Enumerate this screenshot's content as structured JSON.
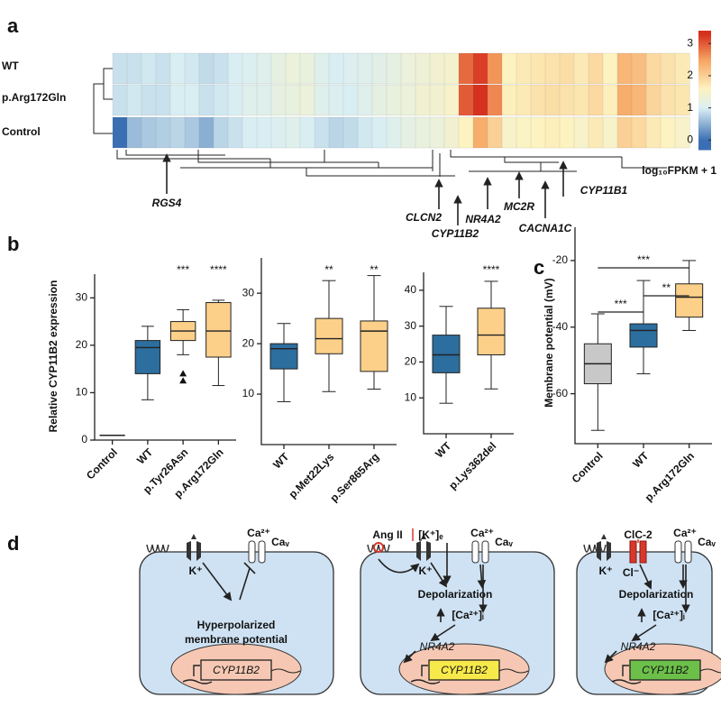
{
  "panels": {
    "a": {
      "label": "a",
      "rows": [
        "WT",
        "p.Arg172Gln",
        "Control"
      ],
      "heatmap": [
        [
          0.9,
          0.9,
          0.95,
          0.9,
          1.0,
          0.95,
          0.85,
          0.9,
          1.0,
          1.05,
          1.1,
          1.2,
          1.3,
          1.25,
          1.1,
          1.0,
          1.05,
          1.1,
          1.15,
          1.2,
          1.3,
          1.35,
          1.4,
          1.45,
          2.9,
          3.2,
          2.6,
          1.6,
          1.7,
          1.75,
          1.8,
          1.85,
          1.7,
          1.9,
          1.6,
          2.3,
          2.2,
          1.9,
          1.8,
          1.7
        ],
        [
          0.9,
          0.95,
          0.9,
          0.9,
          1.0,
          1.0,
          0.9,
          0.95,
          1.0,
          1.1,
          1.1,
          1.2,
          1.25,
          1.3,
          1.1,
          1.05,
          1.0,
          1.1,
          1.2,
          1.25,
          1.3,
          1.4,
          1.4,
          1.5,
          3.0,
          3.3,
          2.7,
          1.65,
          1.7,
          1.8,
          1.85,
          1.8,
          1.75,
          1.9,
          1.65,
          2.4,
          2.3,
          1.95,
          1.8,
          1.75
        ],
        [
          0.0,
          0.6,
          0.7,
          0.75,
          0.8,
          0.7,
          0.5,
          0.8,
          0.9,
          1.0,
          1.0,
          1.05,
          1.1,
          1.0,
          0.9,
          0.8,
          0.85,
          0.95,
          1.0,
          1.1,
          1.2,
          1.25,
          1.3,
          1.4,
          1.6,
          2.4,
          2.0,
          1.5,
          1.55,
          1.6,
          1.65,
          1.6,
          1.5,
          1.7,
          1.5,
          2.0,
          1.9,
          1.7,
          1.6,
          1.5
        ]
      ],
      "colorscale": [
        [
          0,
          "#3b6fb3"
        ],
        [
          1,
          "#d9eef3"
        ],
        [
          1.6,
          "#fdf3c0"
        ],
        [
          2.5,
          "#f6a462"
        ],
        [
          3.3,
          "#d6301e"
        ]
      ],
      "clim": [
        -0.3,
        3.4
      ],
      "cticks": [
        0,
        1,
        2,
        3
      ],
      "colorbar_label": "log₁₀FPKM + 1",
      "genes": [
        "RGS4",
        "CLCN2",
        "CYP11B2",
        "NR4A2",
        "MC2R",
        "CACNA1C",
        "CYP11B1"
      ]
    },
    "b": {
      "label": "b",
      "ylabel": "Relative CYP11B2 expression",
      "charts": [
        {
          "type": "box",
          "categories": [
            "Control",
            "WT",
            "p.Tyr26Asn",
            "p.Arg172Gln"
          ],
          "boxes": [
            {
              "min": 1,
              "q1": 1,
              "median": 1,
              "q3": 1,
              "max": 1
            },
            {
              "min": 8.5,
              "q1": 14,
              "median": 19.5,
              "q3": 21,
              "max": 24
            },
            {
              "min": 18,
              "q1": 21,
              "median": 23,
              "q3": 25,
              "max": 27.5,
              "outliers": [
                14,
                12.5
              ]
            },
            {
              "min": 11.5,
              "q1": 17.5,
              "median": 23,
              "q3": 29,
              "max": 29.5
            }
          ],
          "colors": [
            "#2c6e9e",
            "#2c6e9e",
            "#fdd08a",
            "#fdd08a"
          ],
          "significance": [
            null,
            null,
            "***",
            "****"
          ],
          "ylim": [
            0,
            35
          ],
          "yticks": [
            0,
            10,
            20,
            30
          ]
        },
        {
          "type": "box",
          "categories": [
            "WT",
            "p.Met22Lys",
            "p.Ser865Arg"
          ],
          "boxes": [
            {
              "min": 8.5,
              "q1": 15,
              "median": 19,
              "q3": 20,
              "max": 24
            },
            {
              "min": 10.5,
              "q1": 18,
              "median": 21,
              "q3": 25,
              "max": 32.5
            },
            {
              "min": 11,
              "q1": 14.5,
              "median": 22.5,
              "q3": 24.5,
              "max": 33.5
            }
          ],
          "colors": [
            "#2c6e9e",
            "#fdd08a",
            "#fdd08a"
          ],
          "significance": [
            null,
            "**",
            "**"
          ],
          "ylim": [
            0,
            37
          ],
          "yticks": [
            10,
            20,
            30
          ]
        },
        {
          "type": "box",
          "categories": [
            "WT",
            "p.Lys362del"
          ],
          "boxes": [
            {
              "min": 8.5,
              "q1": 17,
              "median": 22,
              "q3": 27.5,
              "max": 35.5
            },
            {
              "min": 12.5,
              "q1": 22,
              "median": 27.5,
              "q3": 35,
              "max": 42.5
            }
          ],
          "colors": [
            "#2c6e9e",
            "#fdd08a"
          ],
          "significance": [
            null,
            "****"
          ],
          "ylim": [
            0,
            45
          ],
          "yticks": [
            10,
            20,
            30,
            40
          ]
        }
      ]
    },
    "c": {
      "label": "c",
      "ylabel": "Membrane potential (mV)",
      "chart": {
        "type": "box",
        "categories": [
          "Control",
          "WT",
          "p.Arg172Gln"
        ],
        "boxes": [
          {
            "min": -71,
            "q1": -57,
            "median": -51,
            "q3": -45,
            "max": -36
          },
          {
            "min": -54,
            "q1": -46,
            "median": -41,
            "q3": -39,
            "max": -26
          },
          {
            "min": -41,
            "q1": -37,
            "median": -31,
            "q3": -27,
            "max": -20
          }
        ],
        "colors": [
          "#c8c8c8",
          "#2c6e9e",
          "#fdd08a"
        ],
        "ylim": [
          -75,
          -10
        ],
        "yticks": [
          -60,
          -40,
          -20
        ]
      },
      "brackets": [
        {
          "from": 0,
          "to": 2,
          "text": "***"
        },
        {
          "from": 0,
          "to": 1,
          "text": "***"
        },
        {
          "from": 1,
          "to": 2,
          "text": "**"
        }
      ]
    },
    "d": {
      "label": "d",
      "cells": [
        {
          "k": "K⁺",
          "ca": "Ca²⁺",
          "cav": "Caᵥ",
          "state": [
            "Hyperpolarized",
            "membrane potential"
          ],
          "gene": "CYP11B2"
        },
        {
          "stim1": "Ang II",
          "stim2": "[K⁺]ₑ",
          "k": "K⁺",
          "ca": "Ca²⁺",
          "cav": "Caᵥ",
          "state": [
            "Depolarization"
          ],
          "cai": "[Ca²⁺]ᵢ",
          "tf": "NR4A2",
          "gene": "CYP11B2"
        },
        {
          "channel": "ClC-2",
          "cl": "Cl⁻",
          "k": "K⁺",
          "ca": "Ca²⁺",
          "cav": "Caᵥ",
          "state": [
            "Depolarization"
          ],
          "cai": "[Ca²⁺]ᵢ",
          "tf": "NR4A2",
          "gene": "CYP11B2"
        }
      ]
    }
  }
}
